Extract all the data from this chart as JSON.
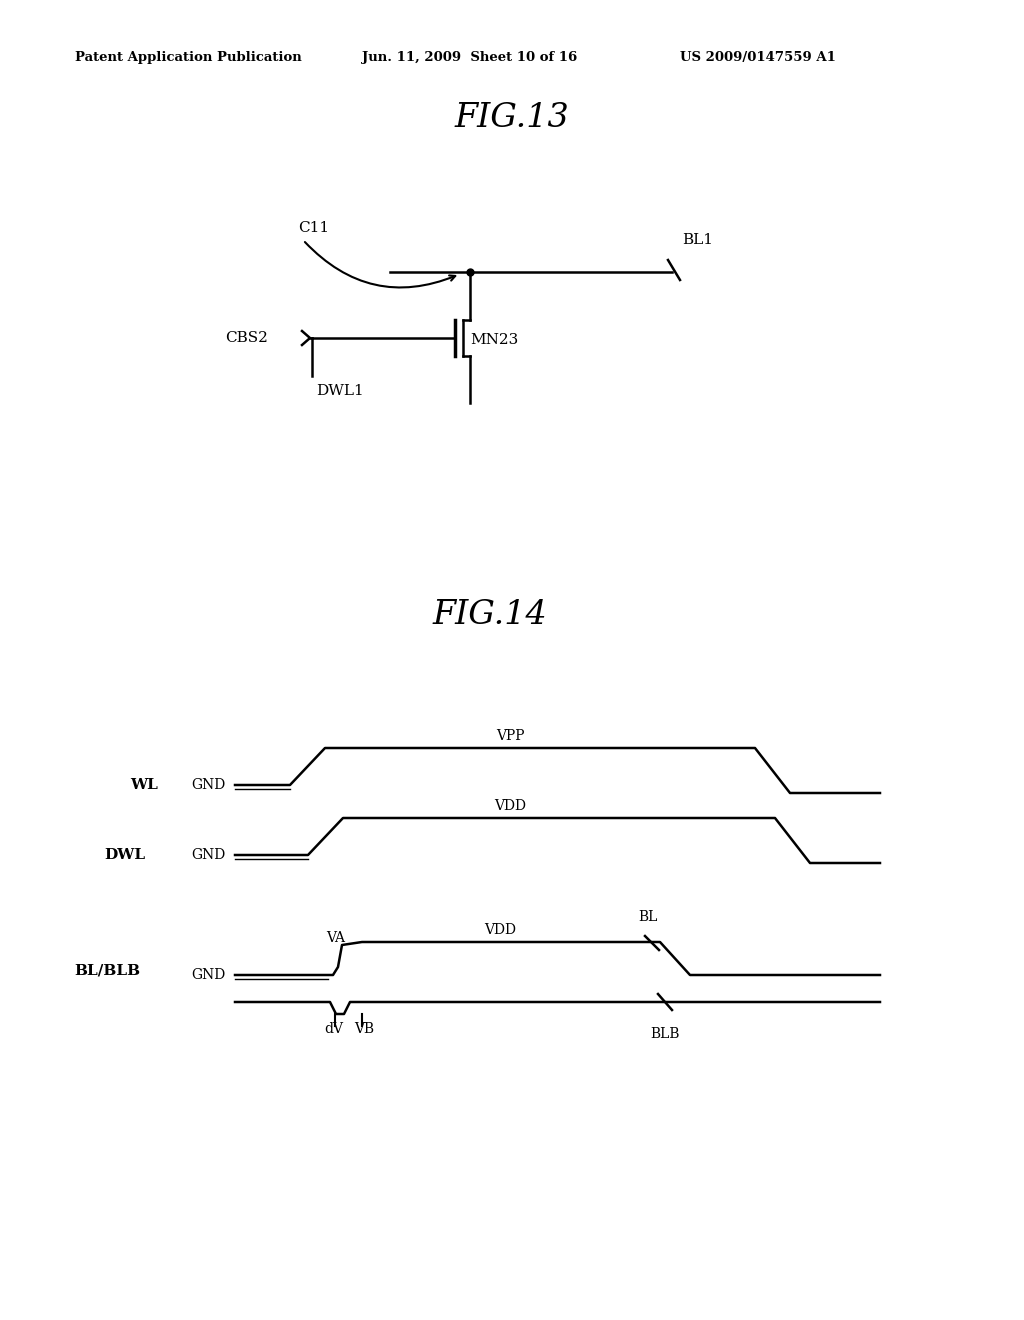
{
  "bg_color": "#ffffff",
  "header_left": "Patent Application Publication",
  "header_center": "Jun. 11, 2009  Sheet 10 of 16",
  "header_right": "US 2009/0147559 A1",
  "fig13_title": "FIG.13",
  "fig14_title": "FIG.14",
  "line_color": "#000000",
  "text_color": "#000000"
}
